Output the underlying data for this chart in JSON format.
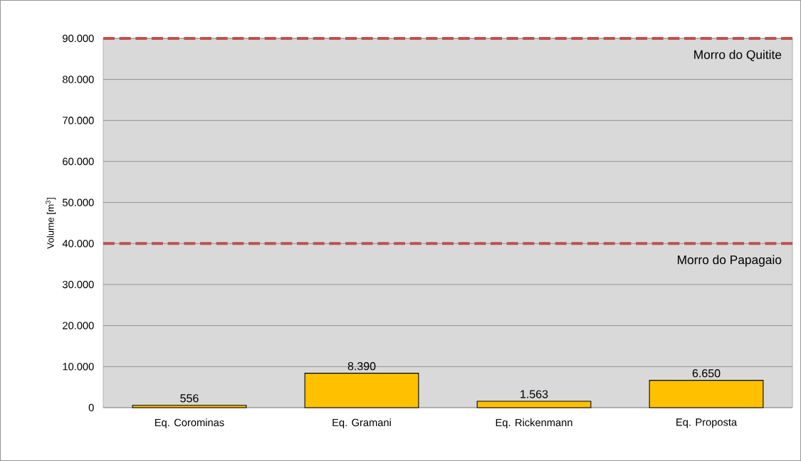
{
  "chart_data": {
    "type": "bar",
    "ylabel": "Volume [m$^{3}$]",
    "categories": [
      "Eq. Corominas",
      "Eq. Gramani",
      "Eq. Rickenmann",
      "Eq. Proposta"
    ],
    "values": [
      556,
      8390,
      1563,
      6650
    ],
    "value_labels": [
      "556",
      "8.390",
      "1.563",
      "6.650"
    ],
    "color": "#ffc000",
    "ylim": [
      0,
      90000
    ],
    "yticks": [
      {
        "value": 0,
        "label": "0"
      },
      {
        "value": 10000,
        "label": "10.000"
      },
      {
        "value": 20000,
        "label": "20.000"
      },
      {
        "value": 30000,
        "label": "30.000"
      },
      {
        "value": 40000,
        "label": "40.000"
      },
      {
        "value": 50000,
        "label": "50.000"
      },
      {
        "value": 60000,
        "label": "60.000"
      },
      {
        "value": 70000,
        "label": "70.000"
      },
      {
        "value": 80000,
        "label": "80.000"
      },
      {
        "value": 90000,
        "label": "90.000"
      }
    ],
    "grid": "y",
    "ref_lines": [
      {
        "axis": "y",
        "value": 90000,
        "label": "Morro do Quitite",
        "color": "#c0504d",
        "line_style": "dashed"
      },
      {
        "axis": "y",
        "value": 40000,
        "label": "Morro do Papagaio",
        "color": "#c0504d",
        "line_style": "dashed"
      }
    ]
  }
}
